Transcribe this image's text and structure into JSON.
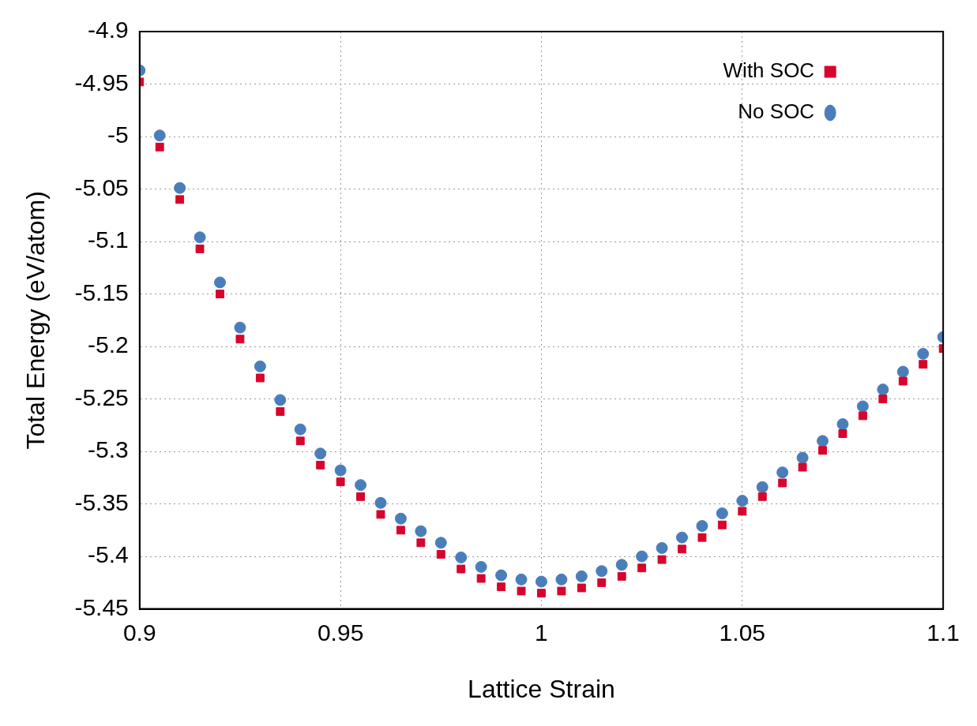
{
  "chart_data": {
    "type": "scatter",
    "xlabel": "Lattice Strain",
    "ylabel": "Total Energy (eV/atom)",
    "xlim": [
      0.9,
      1.1
    ],
    "ylim": [
      -5.45,
      -4.9
    ],
    "xticks": [
      0.9,
      0.95,
      1,
      1.05,
      1.1
    ],
    "yticks": [
      -5.45,
      -5.4,
      -5.35,
      -5.3,
      -5.25,
      -5.2,
      -5.15,
      -5.1,
      -5.05,
      -5,
      -4.95,
      -4.9
    ],
    "grid": true,
    "legend": "top right",
    "x": [
      0.9,
      0.905,
      0.91,
      0.915,
      0.92,
      0.925,
      0.93,
      0.935,
      0.94,
      0.945,
      0.95,
      0.955,
      0.96,
      0.965,
      0.97,
      0.975,
      0.98,
      0.985,
      0.99,
      0.995,
      1.0,
      1.005,
      1.01,
      1.015,
      1.02,
      1.025,
      1.03,
      1.035,
      1.04,
      1.045,
      1.05,
      1.055,
      1.06,
      1.065,
      1.07,
      1.075,
      1.08,
      1.085,
      1.09,
      1.095,
      1.1
    ],
    "series": [
      {
        "name": "With SOC",
        "color": "#d7042b",
        "marker": "square",
        "values": [
          -4.948,
          -5.01,
          -5.06,
          -5.107,
          -5.15,
          -5.193,
          -5.23,
          -5.262,
          -5.29,
          -5.313,
          -5.329,
          -5.343,
          -5.36,
          -5.375,
          -5.387,
          -5.398,
          -5.412,
          -5.421,
          -5.429,
          -5.433,
          -5.435,
          -5.433,
          -5.43,
          -5.425,
          -5.419,
          -5.411,
          -5.403,
          -5.393,
          -5.382,
          -5.37,
          -5.357,
          -5.343,
          -5.33,
          -5.315,
          -5.299,
          -5.283,
          -5.266,
          -5.25,
          -5.233,
          -5.217,
          -5.202
        ]
      },
      {
        "name": "No SOC",
        "color": "#4a7ebb",
        "marker": "circle",
        "values": [
          -4.937,
          -4.999,
          -5.049,
          -5.096,
          -5.139,
          -5.182,
          -5.219,
          -5.251,
          -5.279,
          -5.302,
          -5.318,
          -5.332,
          -5.349,
          -5.364,
          -5.376,
          -5.387,
          -5.401,
          -5.41,
          -5.418,
          -5.422,
          -5.424,
          -5.422,
          -5.419,
          -5.414,
          -5.408,
          -5.4,
          -5.392,
          -5.382,
          -5.371,
          -5.359,
          -5.347,
          -5.334,
          -5.32,
          -5.306,
          -5.29,
          -5.274,
          -5.257,
          -5.241,
          -5.224,
          -5.207,
          -5.191
        ]
      }
    ]
  }
}
